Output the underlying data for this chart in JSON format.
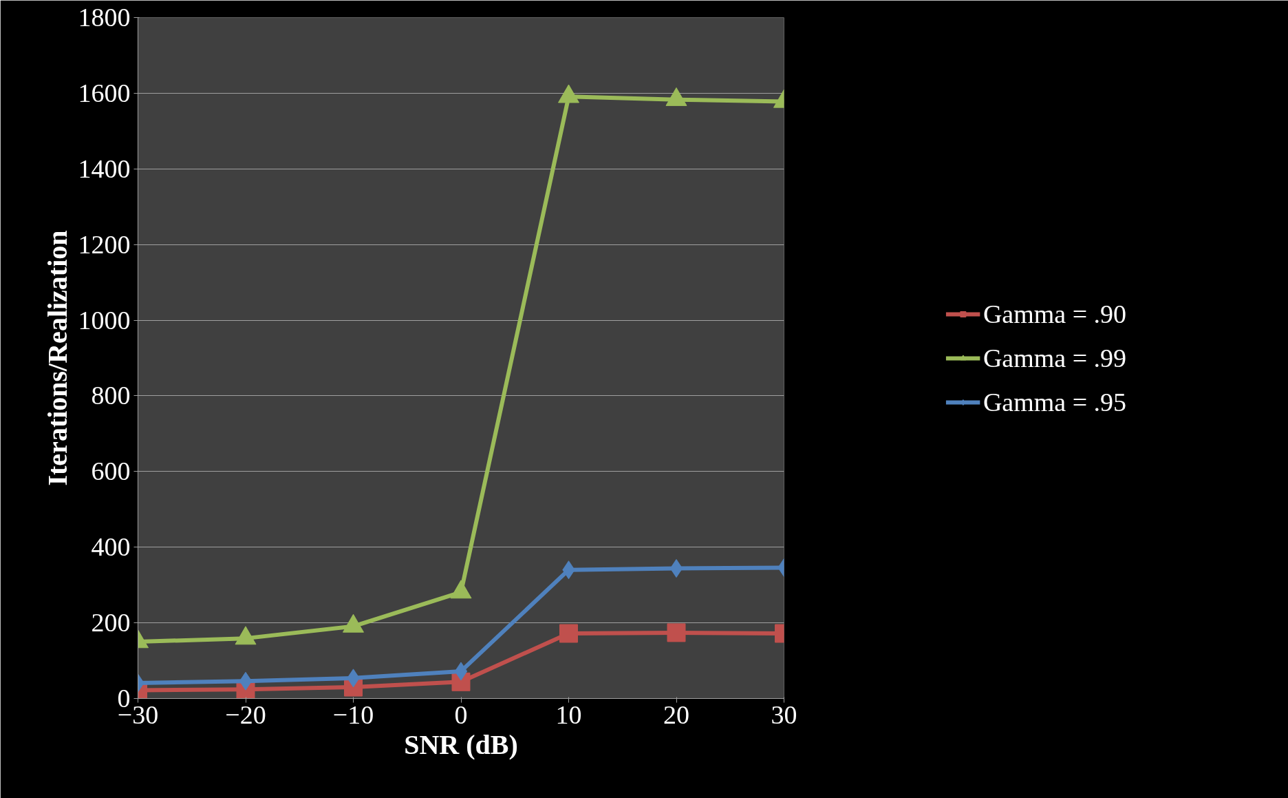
{
  "chart_data": {
    "type": "line",
    "xlabel": "SNR (dB)",
    "ylabel": "Iterations/Realization",
    "x": [
      -30,
      -20,
      -10,
      0,
      10,
      20,
      30
    ],
    "series": [
      {
        "name": "Gamma = .90",
        "color": "#c0504d",
        "marker": "square",
        "values": [
          22,
          24,
          30,
          44,
          172,
          174,
          172
        ]
      },
      {
        "name": "Gamma = .99",
        "color": "#9bbb59",
        "marker": "triangle",
        "values": [
          150,
          159,
          191,
          281,
          1591,
          1583,
          1578
        ]
      },
      {
        "name": "Gamma = .95",
        "color": "#4f81bd",
        "marker": "diamond",
        "values": [
          41,
          46,
          54,
          72,
          340,
          344,
          346
        ]
      }
    ],
    "xlim": [
      -30,
      30
    ],
    "xticks": [
      -30,
      -20,
      -10,
      0,
      10,
      20,
      30
    ],
    "ylim": [
      0,
      1800
    ],
    "yticks": [
      0,
      200,
      400,
      600,
      800,
      1000,
      1200,
      1400,
      1600,
      1800
    ],
    "grid": "y",
    "legend": "right"
  }
}
